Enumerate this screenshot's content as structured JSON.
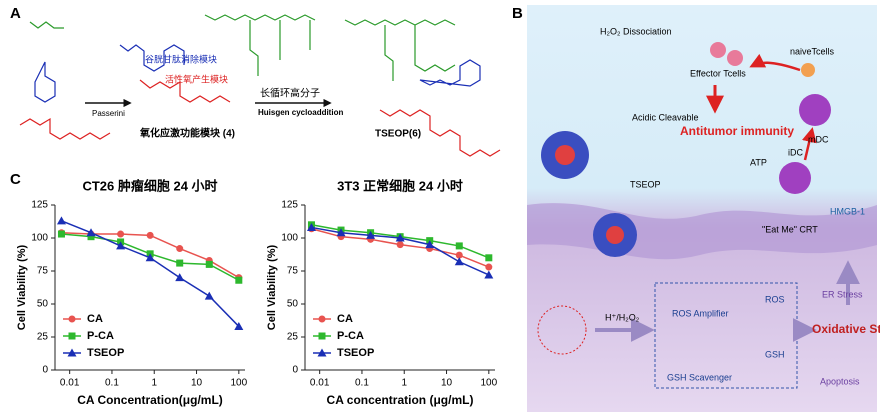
{
  "panel_a": {
    "label": "A",
    "gsh_module": "谷胱甘肽消除模块",
    "ros_module": "活性氧产生模块",
    "passerini": "Passerini",
    "oxidative_module": "氧化应激功能模块 (4)",
    "polymer": "长循环高分子",
    "huisgen": "Huisgen cycloaddition",
    "product": "TSEOP(6)"
  },
  "panel_b": {
    "label": "B",
    "dissociation": "H₂O₂ Dissociation",
    "effector": "Effector Tcells",
    "naive": "naiveTcells",
    "mdc": "mDC",
    "idc": "iDC",
    "atp": "ATP",
    "antitumor": "Antitumor immunity",
    "acidic": "Acidic Cleavable",
    "tseop": "TSEOP",
    "hmgb": "HMGB-1",
    "eatme": "\"Eat Me\"  CRT",
    "trigger": "H⁺/H₂O₂",
    "ros_amp": "ROS Amplifier",
    "ros": "ROS",
    "gsh_scav": "GSH Scavenger",
    "gsh": "GSH",
    "er": "ER Stress",
    "oxidative": "Oxidative Stress",
    "apoptosis": "Apoptosis"
  },
  "panel_c": {
    "label": "C"
  },
  "chart_data": [
    {
      "type": "line",
      "title": "CT26 肿瘤细胞 24 小时",
      "x_label": "CA Concentration(μg/mL)",
      "y_label": "Cell Viability (%)",
      "x": [
        0.0064,
        0.032,
        0.16,
        0.8,
        4,
        20,
        100
      ],
      "x_log": true,
      "xlim": [
        0.0045,
        140
      ],
      "xticks": [
        0.01,
        0.1,
        1,
        10,
        100
      ],
      "ylim": [
        0,
        125
      ],
      "yticks": [
        0,
        25,
        50,
        75,
        100,
        125
      ],
      "legend": "lower-left",
      "series": [
        {
          "name": "CA",
          "color": "#e8534f",
          "marker": "circle",
          "values": [
            104,
            103,
            103,
            102,
            92,
            83,
            70
          ]
        },
        {
          "name": "P-CA",
          "color": "#2db82d",
          "marker": "square",
          "values": [
            103,
            101,
            97,
            88,
            81,
            80,
            68
          ]
        },
        {
          "name": "TSEOP",
          "color": "#1a2fb5",
          "marker": "triangle",
          "values": [
            113,
            104,
            94,
            85,
            70,
            56,
            33
          ]
        }
      ]
    },
    {
      "type": "line",
      "title": "3T3 正常细胞 24 小时",
      "x_label": "CA concentration (μg/mL)",
      "y_label": "Cell Viability (%)",
      "x": [
        0.0064,
        0.032,
        0.16,
        0.8,
        4,
        20,
        100
      ],
      "x_log": true,
      "xlim": [
        0.0045,
        140
      ],
      "xticks": [
        0.01,
        0.1,
        1,
        10,
        100
      ],
      "ylim": [
        0,
        125
      ],
      "yticks": [
        0,
        25,
        50,
        75,
        100,
        125
      ],
      "legend": "lower-left",
      "series": [
        {
          "name": "CA",
          "color": "#e8534f",
          "marker": "circle",
          "values": [
            107,
            101,
            99,
            95,
            92,
            87,
            78
          ]
        },
        {
          "name": "P-CA",
          "color": "#2db82d",
          "marker": "square",
          "values": [
            110,
            106,
            104,
            101,
            98,
            94,
            85
          ]
        },
        {
          "name": "TSEOP",
          "color": "#1a2fb5",
          "marker": "triangle",
          "values": [
            108,
            104,
            102,
            100,
            95,
            82,
            72
          ]
        }
      ]
    }
  ]
}
